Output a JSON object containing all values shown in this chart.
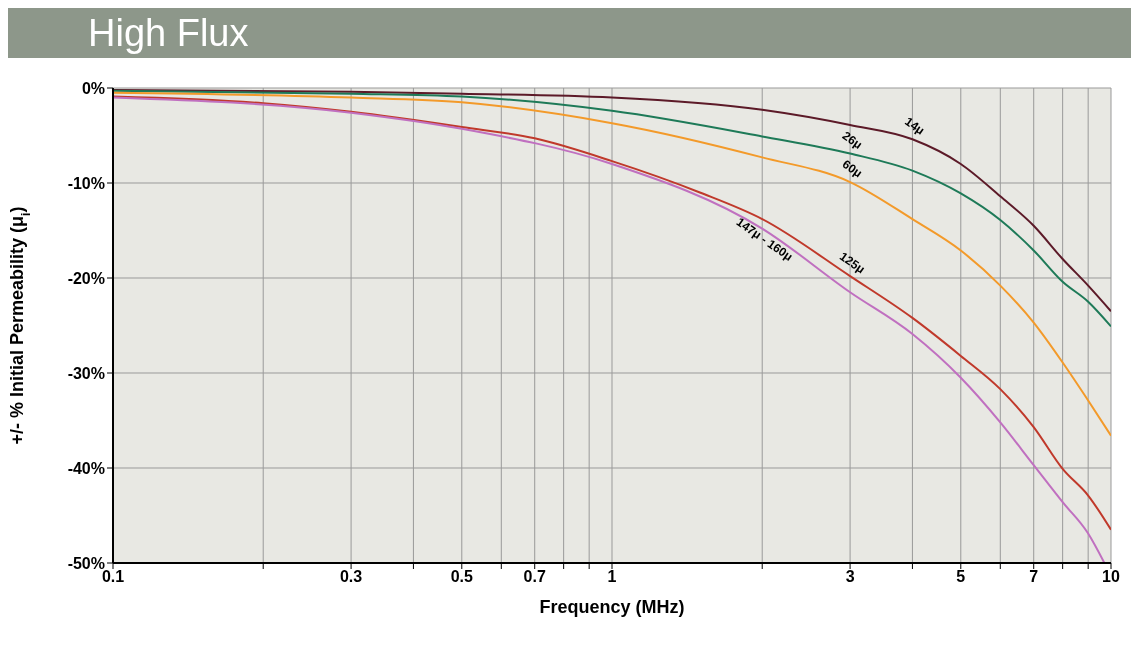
{
  "chart_data": {
    "type": "line",
    "title": "High Flux",
    "xlabel": "Frequency (MHz)",
    "ylabel": "+/- % Initial Permeability (μ$_{i}$)",
    "log": "x",
    "grid": true,
    "legend": false,
    "marker": "none",
    "line_style": "solid",
    "xlim": [
      0.1,
      10
    ],
    "ylim": [
      -50,
      0
    ],
    "xticks": [
      0.1,
      {
        "value": 0.2,
        "label": null
      },
      0.3,
      {
        "value": 0.4,
        "label": null
      },
      0.5,
      {
        "value": 0.6,
        "label": null
      },
      0.7,
      {
        "value": 0.8,
        "label": null
      },
      {
        "value": 0.9,
        "label": null
      },
      1,
      {
        "value": 2,
        "label": null
      },
      3,
      {
        "value": 4,
        "label": null
      },
      5,
      {
        "value": 6,
        "label": null
      },
      7,
      {
        "value": 8,
        "label": null
      },
      {
        "value": 9,
        "label": null
      },
      10
    ],
    "yticks": [
      {
        "value": 0,
        "label": "0%"
      },
      {
        "value": -10,
        "label": "-10%"
      },
      {
        "value": -20,
        "label": "-20%"
      },
      {
        "value": -30,
        "label": "-30%"
      },
      {
        "value": -40,
        "label": "-40%"
      },
      {
        "value": -50,
        "label": "-50%"
      }
    ],
    "series": [
      {
        "name": "14μ",
        "color": "#5c1a28",
        "x": [
          0.1,
          0.3,
          0.5,
          1,
          2,
          3,
          4,
          5,
          6,
          7,
          8,
          9,
          10
        ],
        "values": [
          -0.2,
          -0.4,
          -0.6,
          -1.0,
          -2.3,
          -3.9,
          -5.4,
          -8.0,
          -11.4,
          -14.5,
          -18.0,
          -20.8,
          -23.5
        ]
      },
      {
        "name": "26μ",
        "color": "#1e7a58",
        "x": [
          0.1,
          0.3,
          0.5,
          1,
          2,
          3,
          4,
          5,
          6,
          7,
          8,
          9,
          10
        ],
        "values": [
          -0.3,
          -0.6,
          -0.9,
          -2.4,
          -5.1,
          -6.9,
          -8.7,
          -11.1,
          -13.9,
          -17.1,
          -20.4,
          -22.5,
          -25.1
        ]
      },
      {
        "name": "60μ",
        "color": "#f39a2a",
        "x": [
          0.1,
          0.3,
          0.5,
          1,
          2,
          3,
          4,
          5,
          6,
          7,
          8,
          9,
          10
        ],
        "values": [
          -0.5,
          -1.0,
          -1.5,
          -3.7,
          -7.3,
          -9.9,
          -13.8,
          -17.1,
          -20.8,
          -24.7,
          -28.9,
          -32.9,
          -36.6
        ]
      },
      {
        "name": "125μ",
        "color": "#c0392b",
        "x": [
          0.1,
          0.2,
          0.3,
          0.5,
          0.7,
          1,
          1.5,
          2,
          3,
          4,
          5,
          6,
          7,
          8,
          9,
          10
        ],
        "values": [
          -0.9,
          -1.6,
          -2.5,
          -4.1,
          -5.3,
          -7.7,
          -11.0,
          -13.8,
          -19.8,
          -24.2,
          -28.2,
          -31.7,
          -35.7,
          -40.1,
          -42.9,
          -46.5
        ]
      },
      {
        "name": "147μ - 160μ",
        "color": "#c070c0",
        "x": [
          0.1,
          0.3,
          0.5,
          1,
          2,
          3,
          4,
          5,
          6,
          7,
          8,
          9,
          9.7
        ],
        "values": [
          -1.0,
          -2.6,
          -4.3,
          -8.0,
          -14.8,
          -21.5,
          -25.9,
          -30.5,
          -35.2,
          -39.7,
          -43.6,
          -46.9,
          -50.0
        ]
      }
    ]
  }
}
